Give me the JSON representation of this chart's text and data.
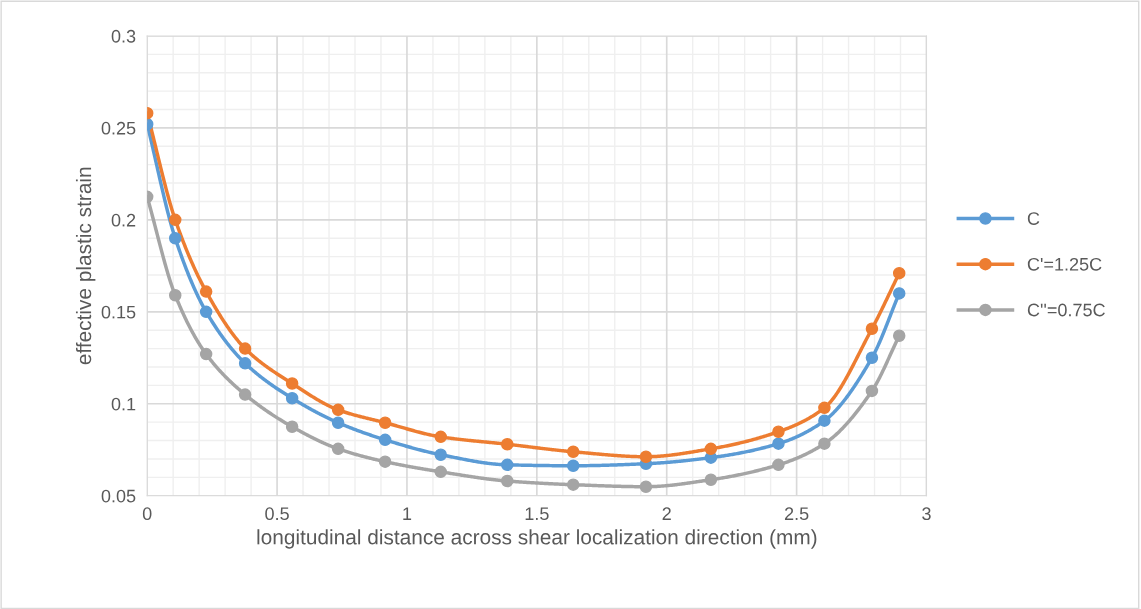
{
  "chart_data": {
    "type": "line",
    "xlabel": "longitudinal distance across shear localization direction (mm)",
    "ylabel": "effective plastic strain",
    "x": [
      0,
      0.108,
      0.227,
      0.377,
      0.558,
      0.735,
      0.916,
      1.13,
      1.386,
      1.64,
      1.92,
      2.17,
      2.43,
      2.607,
      2.79,
      2.895
    ],
    "series": [
      {
        "name": "C",
        "color": "#5b9bd5",
        "values": [
          0.252,
          0.19,
          0.15,
          0.122,
          0.103,
          0.0897,
          0.0804,
          0.0723,
          0.0668,
          0.0663,
          0.0674,
          0.0707,
          0.0783,
          0.0908,
          0.125,
          0.16
        ]
      },
      {
        "name": "C'=1.25C",
        "color": "#ed7d31",
        "values": [
          0.258,
          0.2,
          0.161,
          0.13,
          0.111,
          0.0967,
          0.0897,
          0.082,
          0.078,
          0.0739,
          0.0712,
          0.0755,
          0.0848,
          0.0978,
          0.1408,
          0.171
        ]
      },
      {
        "name": "C''=0.75C",
        "color": "#a5a5a5",
        "values": [
          0.2125,
          0.159,
          0.127,
          0.105,
          0.0875,
          0.0755,
          0.0685,
          0.063,
          0.058,
          0.056,
          0.0549,
          0.0587,
          0.0668,
          0.0783,
          0.107,
          0.137
        ]
      }
    ],
    "xlim": [
      0,
      3
    ],
    "xticks": [
      0,
      0.5,
      1,
      1.5,
      2,
      2.5,
      3
    ],
    "ylim": [
      0.05,
      0.3
    ],
    "yticks": [
      0.05,
      0.1,
      0.15,
      0.2,
      0.25,
      0.3
    ],
    "grid": true,
    "legend": "right",
    "marker": "circle",
    "line_style": "solid"
  }
}
